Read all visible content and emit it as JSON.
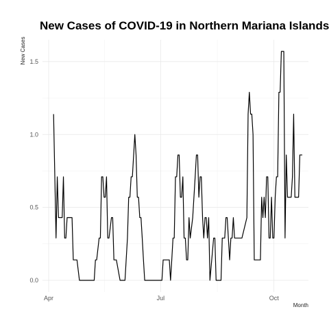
{
  "chart_data": {
    "type": "line",
    "title": "New Cases of COVID-19 in Northern Mariana Islands",
    "xlabel": "Month",
    "ylabel": "New Cases",
    "x_type": "date",
    "xlim": [
      "2021-03-27",
      "2021-10-29"
    ],
    "ylim": [
      -0.08,
      1.65
    ],
    "x_ticks": [
      {
        "date": "2021-04-01",
        "label": "Apr"
      },
      {
        "date": "2021-07-01",
        "label": "Jul"
      },
      {
        "date": "2021-10-01",
        "label": "Oct"
      }
    ],
    "y_ticks": [
      0.0,
      0.5,
      1.0,
      1.5
    ],
    "y_tick_labels": [
      "0.0",
      "0.5",
      "1.0",
      "1.5"
    ],
    "grid": true,
    "legend": "none",
    "line_color": "#000000",
    "x": [
      "2021-04-05",
      "2021-04-07",
      "2021-04-08",
      "2021-04-09",
      "2021-04-10",
      "2021-04-12",
      "2021-04-13",
      "2021-04-14",
      "2021-04-15",
      "2021-04-16",
      "2021-04-17",
      "2021-04-20",
      "2021-04-21",
      "2021-04-24",
      "2021-04-26",
      "2021-04-27",
      "2021-05-08",
      "2021-05-09",
      "2021-05-10",
      "2021-05-12",
      "2021-05-13",
      "2021-05-14",
      "2021-05-15",
      "2021-05-16",
      "2021-05-17",
      "2021-05-18",
      "2021-05-19",
      "2021-05-20",
      "2021-05-22",
      "2021-05-23",
      "2021-05-24",
      "2021-05-26",
      "2021-05-29",
      "2021-05-30",
      "2021-06-02",
      "2021-06-04",
      "2021-06-05",
      "2021-06-06",
      "2021-06-07",
      "2021-06-08",
      "2021-06-10",
      "2021-06-11",
      "2021-06-12",
      "2021-06-13",
      "2021-06-14",
      "2021-06-15",
      "2021-06-16",
      "2021-06-17",
      "2021-06-18",
      "2021-06-20",
      "2021-06-21",
      "2021-06-22",
      "2021-07-02",
      "2021-07-03",
      "2021-07-04",
      "2021-07-08",
      "2021-07-09",
      "2021-07-10",
      "2021-07-11",
      "2021-07-12",
      "2021-07-13",
      "2021-07-14",
      "2021-07-15",
      "2021-07-16",
      "2021-07-17",
      "2021-07-18",
      "2021-07-19",
      "2021-07-20",
      "2021-07-21",
      "2021-07-22",
      "2021-07-23",
      "2021-07-24",
      "2021-07-25",
      "2021-07-27",
      "2021-07-28",
      "2021-07-29",
      "2021-07-30",
      "2021-07-31",
      "2021-08-01",
      "2021-08-02",
      "2021-08-03",
      "2021-08-04",
      "2021-08-05",
      "2021-08-06",
      "2021-08-07",
      "2021-08-08",
      "2021-08-09",
      "2021-08-10",
      "2021-08-13",
      "2021-08-14",
      "2021-08-15",
      "2021-08-17",
      "2021-08-19",
      "2021-08-20",
      "2021-08-21",
      "2021-08-22",
      "2021-08-23",
      "2021-08-24",
      "2021-08-26",
      "2021-08-27",
      "2021-08-28",
      "2021-08-29",
      "2021-08-30",
      "2021-08-31",
      "2021-09-01",
      "2021-09-02",
      "2021-09-03",
      "2021-09-04",
      "2021-09-05",
      "2021-09-09",
      "2021-09-10",
      "2021-09-11",
      "2021-09-12",
      "2021-09-13",
      "2021-09-14",
      "2021-09-15",
      "2021-09-16",
      "2021-09-17",
      "2021-09-20",
      "2021-09-21",
      "2021-09-22",
      "2021-09-23",
      "2021-09-24",
      "2021-09-25",
      "2021-09-26",
      "2021-09-27",
      "2021-09-28",
      "2021-09-29",
      "2021-09-30",
      "2021-10-01",
      "2021-10-02",
      "2021-10-03",
      "2021-10-04",
      "2021-10-05",
      "2021-10-06",
      "2021-10-07",
      "2021-10-08",
      "2021-10-09",
      "2021-10-10",
      "2021-10-11",
      "2021-10-12",
      "2021-10-13",
      "2021-10-14",
      "2021-10-15",
      "2021-10-16",
      "2021-10-17",
      "2021-10-18",
      "2021-10-19",
      "2021-10-20",
      "2021-10-21",
      "2021-10-22",
      "2021-10-23",
      "2021-10-24"
    ],
    "y": [
      1.14,
      0.29,
      0.71,
      0.43,
      0.43,
      0.43,
      0.71,
      0.29,
      0.29,
      0.43,
      0.43,
      0.43,
      0.14,
      0.14,
      0.0,
      0.0,
      0.0,
      0.14,
      0.14,
      0.29,
      0.29,
      0.71,
      0.71,
      0.57,
      0.57,
      0.71,
      0.29,
      0.29,
      0.43,
      0.43,
      0.14,
      0.14,
      0.0,
      0.0,
      0.0,
      0.29,
      0.57,
      0.57,
      0.71,
      0.71,
      1.0,
      0.86,
      0.57,
      0.57,
      0.43,
      0.43,
      0.29,
      0.14,
      0.0,
      0.0,
      0.0,
      0.0,
      0.0,
      0.14,
      0.14,
      0.14,
      0.0,
      0.14,
      0.29,
      0.29,
      0.71,
      0.71,
      0.86,
      0.86,
      0.57,
      0.57,
      0.71,
      0.29,
      0.29,
      0.14,
      0.14,
      0.43,
      0.29,
      0.43,
      0.57,
      0.71,
      0.86,
      0.86,
      0.57,
      0.71,
      0.71,
      0.43,
      0.29,
      0.43,
      0.43,
      0.29,
      0.43,
      0.0,
      0.29,
      0.29,
      0.0,
      0.0,
      0.0,
      0.29,
      0.29,
      0.29,
      0.43,
      0.43,
      0.14,
      0.29,
      0.29,
      0.43,
      0.29,
      0.29,
      0.29,
      0.29,
      0.29,
      0.29,
      0.29,
      0.43,
      1.14,
      1.29,
      1.14,
      1.14,
      1.0,
      0.14,
      0.14,
      0.14,
      0.14,
      0.57,
      0.43,
      0.57,
      0.43,
      0.71,
      0.71,
      0.29,
      0.29,
      0.57,
      0.29,
      0.29,
      0.57,
      0.71,
      0.71,
      1.29,
      1.29,
      1.57,
      1.57,
      1.57,
      0.29,
      0.86,
      0.57,
      0.57,
      0.57,
      0.57,
      0.71,
      1.14,
      0.57,
      0.57,
      0.57,
      0.57,
      0.86,
      0.86,
      0.86
    ]
  }
}
